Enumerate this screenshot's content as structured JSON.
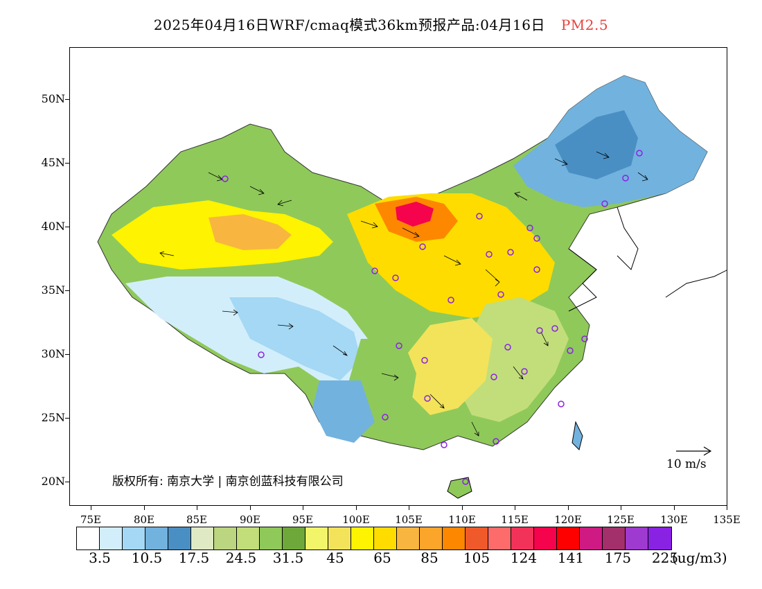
{
  "title": {
    "main": "2025年04月16日WRF/cmaq模式36km预报产品:04月16日",
    "variable": "PM2.5",
    "variable_color": "#e8403c"
  },
  "map": {
    "lat_labels": [
      "50N",
      "45N",
      "40N",
      "35N",
      "30N",
      "25N",
      "20N"
    ],
    "lon_labels": [
      "75E",
      "80E",
      "85E",
      "90E",
      "95E",
      "100E",
      "105E",
      "110E",
      "115E",
      "120E",
      "125E",
      "130E",
      "135E"
    ],
    "copyright": "版权所有: 南京大学 | 南京创蓝科技有限公司",
    "wind_reference": "10 m/s"
  },
  "colorbar": {
    "colors": [
      "#ffffff",
      "#d3eefb",
      "#a4d8f4",
      "#72b2de",
      "#4a8fc3",
      "#dfe9c3",
      "#bcd580",
      "#c2de7a",
      "#8fc95a",
      "#6ea83a",
      "#f2f56a",
      "#f3e35a",
      "#fef300",
      "#fedc00",
      "#f8b640",
      "#fba52a",
      "#fe8700",
      "#f05a2a",
      "#fe6b6b",
      "#f3325a",
      "#f5034c",
      "#fe0000",
      "#cf1a84",
      "#a3306a",
      "#9e3ad0",
      "#8a22e4"
    ],
    "labels": [
      "3.5",
      "10.5",
      "17.5",
      "24.5",
      "31.5",
      "45",
      "65",
      "85",
      "105",
      "124",
      "141",
      "175",
      "225"
    ],
    "unit": "(ug/m3)"
  }
}
